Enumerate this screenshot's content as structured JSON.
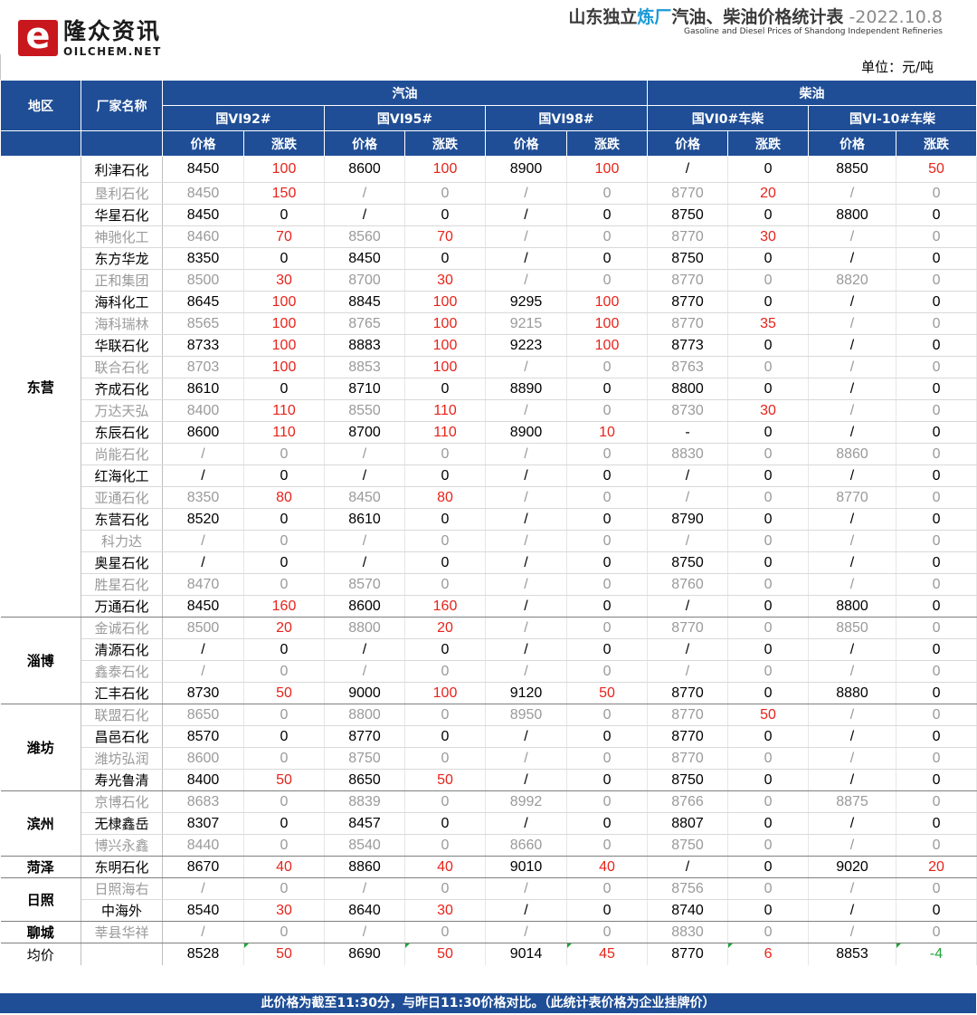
{
  "logo": {
    "mark": "e",
    "cn": "隆众资讯",
    "en": "OILCHEM.NET"
  },
  "title": {
    "prefix": "山东独立",
    "highlight": "炼厂",
    "suffix": "汽油、柴油价格统计表",
    "date": " -2022.10.8"
  },
  "subtitle": "Gasoline and Diesel Prices of Shandong Independent Refineries",
  "unit": "单位：元/吨",
  "header": {
    "region": "地区",
    "company": "厂家名称",
    "gasoline": "汽油",
    "diesel": "柴油",
    "products": [
      "国VI92#",
      "国VI95#",
      "国VI98#",
      "国VI0#车柴",
      "国VI-10#车柴"
    ],
    "price": "价格",
    "change": "涨跌"
  },
  "colors": {
    "header_bg": "#1f4e96",
    "up": "#e8231a",
    "down": "#1fa33a",
    "light_row_text": "#9a9a9a",
    "title_highlight": "#1a9ad6"
  },
  "regions": [
    {
      "name": "东营",
      "rows": [
        {
          "company": "利津石化",
          "v": [
            "8450",
            "100",
            "8600",
            "100",
            "8900",
            "100",
            "/",
            "0",
            "8850",
            "50"
          ],
          "style": "dark"
        },
        {
          "company": "垦利石化",
          "v": [
            "8450",
            "150",
            "/",
            "0",
            "/",
            "0",
            "8770",
            "20",
            "/",
            "0"
          ],
          "style": "light"
        },
        {
          "company": "华星石化",
          "v": [
            "8450",
            "0",
            "/",
            "0",
            "/",
            "0",
            "8750",
            "0",
            "8800",
            "0"
          ],
          "style": "dark"
        },
        {
          "company": "神驰化工",
          "v": [
            "8460",
            "70",
            "8560",
            "70",
            "/",
            "0",
            "8770",
            "30",
            "/",
            "0"
          ],
          "style": "light"
        },
        {
          "company": "东方华龙",
          "v": [
            "8350",
            "0",
            "8450",
            "0",
            "/",
            "0",
            "8750",
            "0",
            "/",
            "0"
          ],
          "style": "dark"
        },
        {
          "company": "正和集团",
          "v": [
            "8500",
            "30",
            "8700",
            "30",
            "/",
            "0",
            "8770",
            "0",
            "8820",
            "0"
          ],
          "style": "light"
        },
        {
          "company": "海科化工",
          "v": [
            "8645",
            "100",
            "8845",
            "100",
            "9295",
            "100",
            "8770",
            "0",
            "/",
            "0"
          ],
          "style": "dark"
        },
        {
          "company": "海科瑞林",
          "v": [
            "8565",
            "100",
            "8765",
            "100",
            "9215",
            "100",
            "8770",
            "35",
            "/",
            "0"
          ],
          "style": "light"
        },
        {
          "company": "华联石化",
          "v": [
            "8733",
            "100",
            "8883",
            "100",
            "9223",
            "100",
            "8773",
            "0",
            "/",
            "0"
          ],
          "style": "dark"
        },
        {
          "company": "联合石化",
          "v": [
            "8703",
            "100",
            "8853",
            "100",
            "/",
            "0",
            "8763",
            "0",
            "/",
            "0"
          ],
          "style": "light"
        },
        {
          "company": "齐成石化",
          "v": [
            "8610",
            "0",
            "8710",
            "0",
            "8890",
            "0",
            "8800",
            "0",
            "/",
            "0"
          ],
          "style": "dark"
        },
        {
          "company": "万达天弘",
          "v": [
            "8400",
            "110",
            "8550",
            "110",
            "/",
            "0",
            "8730",
            "30",
            "/",
            "0"
          ],
          "style": "light"
        },
        {
          "company": "东辰石化",
          "v": [
            "8600",
            "110",
            "8700",
            "110",
            "8900",
            "10",
            "-",
            "0",
            "/",
            "0"
          ],
          "style": "dark"
        },
        {
          "company": "尚能石化",
          "v": [
            "/",
            "0",
            "/",
            "0",
            "/",
            "0",
            "8830",
            "0",
            "8860",
            "0"
          ],
          "style": "light"
        },
        {
          "company": "红海化工",
          "v": [
            "/",
            "0",
            "/",
            "0",
            "/",
            "0",
            "/",
            "0",
            "/",
            "0"
          ],
          "style": "dark"
        },
        {
          "company": "亚通石化",
          "v": [
            "8350",
            "80",
            "8450",
            "80",
            "/",
            "0",
            "/",
            "0",
            "8770",
            "0"
          ],
          "style": "light"
        },
        {
          "company": "东营石化",
          "v": [
            "8520",
            "0",
            "8610",
            "0",
            "/",
            "0",
            "8790",
            "0",
            "/",
            "0"
          ],
          "style": "dark"
        },
        {
          "company": "科力达",
          "v": [
            "/",
            "0",
            "/",
            "0",
            "/",
            "0",
            "/",
            "0",
            "/",
            "0"
          ],
          "style": "light"
        },
        {
          "company": "奥星石化",
          "v": [
            "/",
            "0",
            "/",
            "0",
            "/",
            "0",
            "8750",
            "0",
            "/",
            "0"
          ],
          "style": "dark"
        },
        {
          "company": "胜星石化",
          "v": [
            "8470",
            "0",
            "8570",
            "0",
            "/",
            "0",
            "8760",
            "0",
            "/",
            "0"
          ],
          "style": "light"
        },
        {
          "company": "万通石化",
          "v": [
            "8450",
            "160",
            "8600",
            "160",
            "/",
            "0",
            "/",
            "0",
            "8800",
            "0"
          ],
          "style": "dark"
        }
      ]
    },
    {
      "name": "淄博",
      "rows": [
        {
          "company": "金诚石化",
          "v": [
            "8500",
            "20",
            "8800",
            "20",
            "/",
            "0",
            "8770",
            "0",
            "8850",
            "0"
          ],
          "style": "light"
        },
        {
          "company": "清源石化",
          "v": [
            "/",
            "0",
            "/",
            "0",
            "/",
            "0",
            "/",
            "0",
            "/",
            "0"
          ],
          "style": "dark"
        },
        {
          "company": "鑫泰石化",
          "v": [
            "/",
            "0",
            "/",
            "0",
            "/",
            "0",
            "/",
            "0",
            "/",
            "0"
          ],
          "style": "light"
        },
        {
          "company": "汇丰石化",
          "v": [
            "8730",
            "50",
            "9000",
            "100",
            "9120",
            "50",
            "8770",
            "0",
            "8880",
            "0"
          ],
          "style": "dark"
        }
      ]
    },
    {
      "name": "潍坊",
      "rows": [
        {
          "company": "联盟石化",
          "v": [
            "8650",
            "0",
            "8800",
            "0",
            "8950",
            "0",
            "8770",
            "50",
            "/",
            "0"
          ],
          "style": "light"
        },
        {
          "company": "昌邑石化",
          "v": [
            "8570",
            "0",
            "8770",
            "0",
            "/",
            "0",
            "8770",
            "0",
            "/",
            "0"
          ],
          "style": "dark"
        },
        {
          "company": "潍坊弘润",
          "v": [
            "8600",
            "0",
            "8750",
            "0",
            "/",
            "0",
            "8770",
            "0",
            "/",
            "0"
          ],
          "style": "light"
        },
        {
          "company": "寿光鲁清",
          "v": [
            "8400",
            "50",
            "8650",
            "50",
            "/",
            "0",
            "8750",
            "0",
            "/",
            "0"
          ],
          "style": "dark"
        }
      ]
    },
    {
      "name": "滨州",
      "rows": [
        {
          "company": "京博石化",
          "v": [
            "8683",
            "0",
            "8839",
            "0",
            "8992",
            "0",
            "8766",
            "0",
            "8875",
            "0"
          ],
          "style": "light"
        },
        {
          "company": "无棣鑫岳",
          "v": [
            "8307",
            "0",
            "8457",
            "0",
            "/",
            "0",
            "8807",
            "0",
            "/",
            "0"
          ],
          "style": "dark"
        },
        {
          "company": "博兴永鑫",
          "v": [
            "8440",
            "0",
            "8540",
            "0",
            "8660",
            "0",
            "8750",
            "0",
            "/",
            "0"
          ],
          "style": "light"
        }
      ]
    },
    {
      "name": "菏泽",
      "rows": [
        {
          "company": "东明石化",
          "v": [
            "8670",
            "40",
            "8860",
            "40",
            "9010",
            "40",
            "/",
            "0",
            "9020",
            "20"
          ],
          "style": "dark"
        }
      ]
    },
    {
      "name": "日照",
      "rows": [
        {
          "company": "日照海右",
          "v": [
            "/",
            "0",
            "/",
            "0",
            "/",
            "0",
            "8756",
            "0",
            "/",
            "0"
          ],
          "style": "light"
        },
        {
          "company": "中海外",
          "v": [
            "8540",
            "30",
            "8640",
            "30",
            "/",
            "0",
            "8740",
            "0",
            "/",
            "0"
          ],
          "style": "dark"
        }
      ]
    },
    {
      "name": "聊城",
      "rows": [
        {
          "company": "莘县华祥",
          "v": [
            "/",
            "0",
            "/",
            "0",
            "/",
            "0",
            "8830",
            "0",
            "/",
            "0"
          ],
          "style": "light"
        }
      ]
    }
  ],
  "average": {
    "label": "均价",
    "v": [
      "8528",
      "50",
      "8690",
      "50",
      "9014",
      "45",
      "8770",
      "6",
      "8853",
      "-4"
    ]
  },
  "footer": "此价格为截至11:30分，与昨日11:30价格对比。（此统计表价格为企业挂牌价）"
}
